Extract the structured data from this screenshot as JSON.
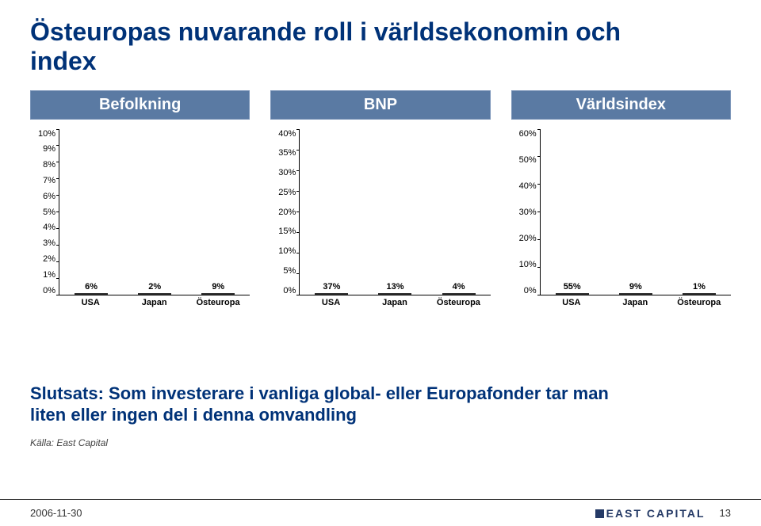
{
  "title_line1": "Östeuropas nuvarande roll i världsekonomin och",
  "title_line2": "index",
  "columns": [
    {
      "label": "Befolkning"
    },
    {
      "label": "BNP"
    },
    {
      "label": "Världsindex"
    }
  ],
  "charts": [
    {
      "type": "bar",
      "ymax": 10,
      "ystep": 1,
      "yunit": "%",
      "categories": [
        "USA",
        "Japan",
        "Östeuropa"
      ],
      "values": [
        6,
        2,
        9
      ],
      "value_labels": [
        "6%",
        "2%",
        "9%"
      ],
      "bar_colors": [
        "#ffffff",
        "#e5e5e5",
        "#f6c8de"
      ],
      "bar_border": "#333333",
      "label_fontsize": 11
    },
    {
      "type": "bar",
      "ymax": 40,
      "ystep": 5,
      "yunit": "%",
      "categories": [
        "USA",
        "Japan",
        "Östeuropa"
      ],
      "values": [
        37,
        13,
        4
      ],
      "value_labels": [
        "37%",
        "13%",
        "4%"
      ],
      "bar_colors": [
        "#ffffff",
        "#e5e5e5",
        "#f6c8de"
      ],
      "bar_border": "#333333",
      "label_fontsize": 11
    },
    {
      "type": "bar",
      "ymax": 60,
      "ystep": 10,
      "yunit": "%",
      "categories": [
        "USA",
        "Japan",
        "Östeuropa"
      ],
      "values": [
        55,
        9,
        1
      ],
      "value_labels": [
        "55%",
        "9%",
        "1%"
      ],
      "bar_colors": [
        "#ffffff",
        "#e5e5e5",
        "#f6c8de"
      ],
      "bar_border": "#333333",
      "label_fontsize": 11
    }
  ],
  "conclusion_line1": "Slutsats: Som investerare i vanliga global- eller Europafonder tar man",
  "conclusion_line2": "liten eller ingen del i denna omvandling",
  "source": "Källa: East Capital",
  "footer": {
    "date": "2006-11-30",
    "brand": "EAST CAPITAL",
    "page": "13"
  },
  "colors": {
    "title": "#003278",
    "header_bg": "#5a7aa3",
    "header_text": "#ffffff",
    "background": "#ffffff"
  }
}
